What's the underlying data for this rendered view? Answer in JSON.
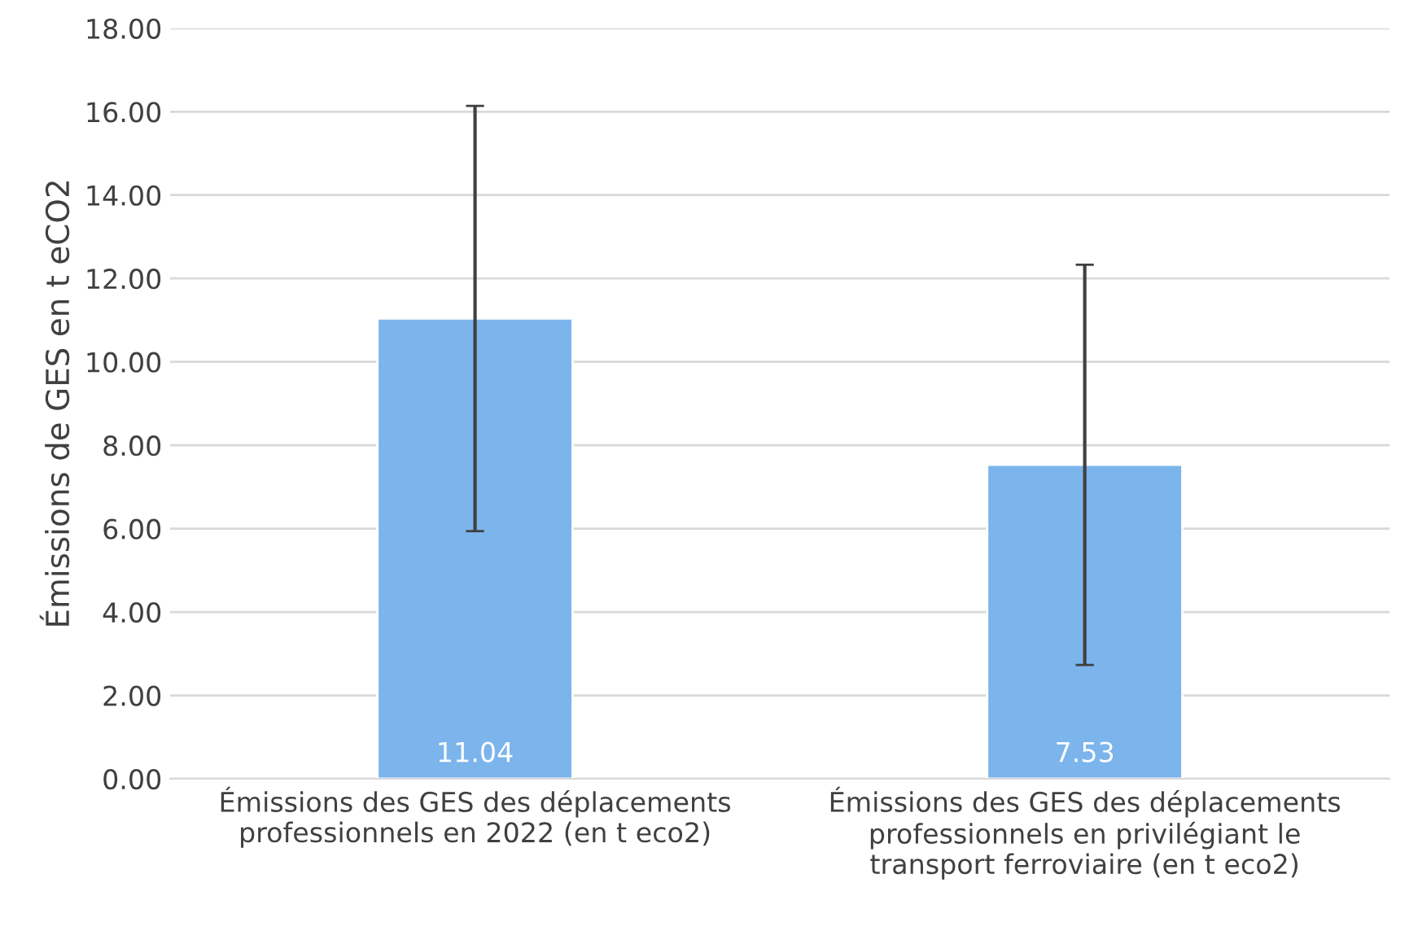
{
  "chart_data": {
    "type": "bar",
    "ylabel": "Émissions de GES en t eCO2",
    "categories": [
      "Émissions des GES des déplacements\nprofessionnels en 2022 (en t eco2)",
      "Émissions des GES des déplacements\nprofessionnels en privilégiant le\ntransport ferroviaire (en t eco2)"
    ],
    "values": [
      11.04,
      7.53
    ],
    "errors": [
      5.1,
      4.8
    ],
    "color": "#7cb4ec",
    "data_labels": true,
    "ylim": [
      0,
      18
    ],
    "yticks": [
      {
        "value": 0,
        "label": "0.00"
      },
      {
        "value": 2,
        "label": "2.00"
      },
      {
        "value": 4,
        "label": "4.00"
      },
      {
        "value": 6,
        "label": "6.00"
      },
      {
        "value": 8,
        "label": "8.00"
      },
      {
        "value": 10,
        "label": "10.00"
      },
      {
        "value": 12,
        "label": "12.00"
      },
      {
        "value": 14,
        "label": "14.00"
      },
      {
        "value": 16,
        "label": "16.00"
      },
      {
        "value": 18,
        "label": "18.00"
      }
    ],
    "grid": "y"
  }
}
